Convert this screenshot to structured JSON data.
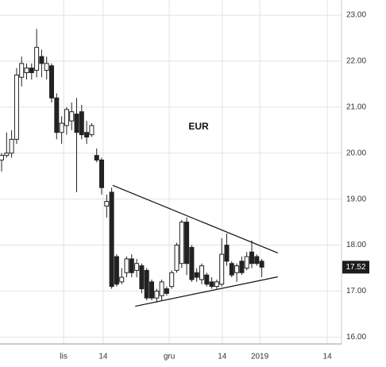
{
  "chart_data": {
    "type": "candlestick",
    "title": "EUR",
    "x": [
      0,
      1,
      2,
      3,
      4,
      5,
      6,
      7,
      8,
      9,
      10,
      11,
      12,
      13,
      14,
      15,
      16,
      17,
      18,
      19,
      20,
      21,
      22,
      23,
      24,
      25,
      26,
      27,
      28,
      29,
      30,
      31,
      32,
      33,
      34,
      35,
      36,
      37,
      38,
      39,
      40,
      41,
      42,
      43,
      44,
      45,
      46,
      47,
      48,
      49,
      50,
      51,
      52
    ],
    "open": [
      19.85,
      19.95,
      20.0,
      20.3,
      21.65,
      21.75,
      21.85,
      21.8,
      22.1,
      21.8,
      21.9,
      21.2,
      20.45,
      20.6,
      20.7,
      20.85,
      20.9,
      20.45,
      20.4,
      19.95,
      19.85,
      18.85,
      19.15,
      17.75,
      17.2,
      17.4,
      17.7,
      17.45,
      17.55,
      17.45,
      17.2,
      16.85,
      16.9,
      17.05,
      17.1,
      17.45,
      17.6,
      18.5,
      17.95,
      17.4,
      17.25,
      17.35,
      17.2,
      17.1,
      17.15,
      18.0,
      17.6,
      17.4,
      17.65,
      17.5,
      17.85,
      17.75,
      17.65
    ],
    "high": [
      20.0,
      20.45,
      20.5,
      21.85,
      22.1,
      21.95,
      21.95,
      22.7,
      22.25,
      22.1,
      21.95,
      21.3,
      20.8,
      21.0,
      21.1,
      21.2,
      21.05,
      20.7,
      20.65,
      20.1,
      19.9,
      19.1,
      19.25,
      17.8,
      17.5,
      17.75,
      17.8,
      17.7,
      17.6,
      17.5,
      17.25,
      17.05,
      17.25,
      17.1,
      17.45,
      18.05,
      18.55,
      18.6,
      18.0,
      17.5,
      17.6,
      17.4,
      17.3,
      17.25,
      18.15,
      18.25,
      17.65,
      17.6,
      17.75,
      17.85,
      18.1,
      17.8,
      17.7
    ],
    "low": [
      19.6,
      19.9,
      19.9,
      20.2,
      21.45,
      21.6,
      21.6,
      21.65,
      21.65,
      21.6,
      21.1,
      20.3,
      20.2,
      20.4,
      20.5,
      19.15,
      20.3,
      20.2,
      20.35,
      19.8,
      19.1,
      18.6,
      17.05,
      17.1,
      17.15,
      17.3,
      17.3,
      17.3,
      16.95,
      16.8,
      16.8,
      16.75,
      16.8,
      16.9,
      17.05,
      17.4,
      17.5,
      17.35,
      17.2,
      17.2,
      17.15,
      17.1,
      17.05,
      17.05,
      17.1,
      17.55,
      17.3,
      17.2,
      17.35,
      17.45,
      17.5,
      17.55,
      17.3
    ],
    "close": [
      19.95,
      20.0,
      20.3,
      21.7,
      21.95,
      21.85,
      21.75,
      22.3,
      21.95,
      21.95,
      21.2,
      20.45,
      20.65,
      20.95,
      20.9,
      20.45,
      20.4,
      20.35,
      20.6,
      19.85,
      19.25,
      18.95,
      17.1,
      17.15,
      17.3,
      17.7,
      17.4,
      17.6,
      17.05,
      16.85,
      16.85,
      17.0,
      17.2,
      16.95,
      17.4,
      18.0,
      18.5,
      17.6,
      17.25,
      17.3,
      17.55,
      17.15,
      17.1,
      17.2,
      17.8,
      17.65,
      17.35,
      17.55,
      17.4,
      17.75,
      17.6,
      17.6,
      17.52
    ],
    "up_color": "#ffffff",
    "down_color": "#222222",
    "last_price": 17.52,
    "trendlines": [
      {
        "x": [
          22.2,
          55.2
        ],
        "y": [
          19.3,
          17.83
        ]
      },
      {
        "x": [
          26.7,
          55.2
        ],
        "y": [
          16.67,
          17.31
        ]
      }
    ],
    "xlim": [
      -0.32,
      67.94
    ],
    "xticks": [
      {
        "value": 12.4,
        "label": "lis"
      },
      {
        "value": 20.3,
        "label": "14"
      },
      {
        "value": 33.5,
        "label": "gru"
      },
      {
        "value": 44.1,
        "label": "14"
      },
      {
        "value": 51.6,
        "label": "2019"
      },
      {
        "value": 65.1,
        "label": "14"
      }
    ],
    "ylim": [
      15.85,
      23.33
    ],
    "yticks": [
      {
        "value": 16,
        "label": "16.00"
      },
      {
        "value": 17,
        "label": "17.00"
      },
      {
        "value": 18,
        "label": "18.00"
      },
      {
        "value": 19,
        "label": "19.00"
      },
      {
        "value": 20,
        "label": "20.00"
      },
      {
        "value": 21,
        "label": "21.00"
      },
      {
        "value": 22,
        "label": "22.00"
      },
      {
        "value": 23,
        "label": "23.00"
      }
    ],
    "grid": true
  }
}
